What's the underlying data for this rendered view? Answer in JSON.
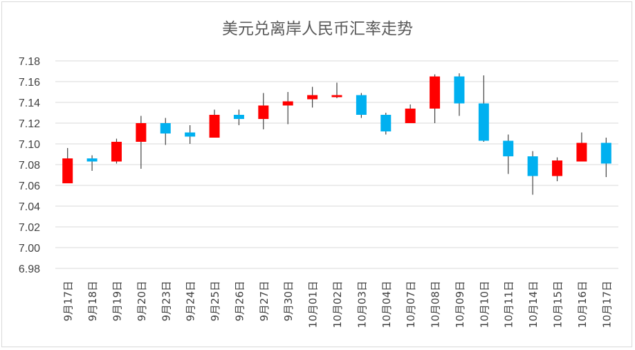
{
  "chart_data": {
    "type": "candlestick",
    "title": "美元兑离岸人民币汇率走势",
    "ylim": [
      6.98,
      7.18
    ],
    "y_ticks": [
      "6.98",
      "7.00",
      "7.02",
      "7.04",
      "7.06",
      "7.08",
      "7.10",
      "7.12",
      "7.14",
      "7.16",
      "7.18"
    ],
    "grid": true,
    "colors": {
      "up": "#ff0000",
      "down": "#00b0f0",
      "wick": "#404040",
      "grid": "#d9d9d9"
    },
    "categories": [
      "9月17日",
      "9月18日",
      "9月19日",
      "9月20日",
      "9月23日",
      "9月24日",
      "9月25日",
      "9月26日",
      "9月27日",
      "9月30日",
      "10月01日",
      "10月02日",
      "10月03日",
      "10月04日",
      "10月07日",
      "10月08日",
      "10月09日",
      "10月10日",
      "10月11日",
      "10月14日",
      "10月15日",
      "10月16日",
      "10月17日"
    ],
    "candles": [
      {
        "open": 7.062,
        "close": 7.086,
        "high": 7.096,
        "low": 7.062
      },
      {
        "open": 7.086,
        "close": 7.083,
        "high": 7.089,
        "low": 7.074
      },
      {
        "open": 7.083,
        "close": 7.102,
        "high": 7.105,
        "low": 7.081
      },
      {
        "open": 7.102,
        "close": 7.12,
        "high": 7.127,
        "low": 7.076
      },
      {
        "open": 7.12,
        "close": 7.11,
        "high": 7.125,
        "low": 7.099
      },
      {
        "open": 7.111,
        "close": 7.107,
        "high": 7.118,
        "low": 7.1
      },
      {
        "open": 7.106,
        "close": 7.128,
        "high": 7.133,
        "low": 7.106
      },
      {
        "open": 7.128,
        "close": 7.124,
        "high": 7.133,
        "low": 7.118
      },
      {
        "open": 7.124,
        "close": 7.137,
        "high": 7.149,
        "low": 7.114
      },
      {
        "open": 7.137,
        "close": 7.141,
        "high": 7.15,
        "low": 7.119
      },
      {
        "open": 7.143,
        "close": 7.147,
        "high": 7.155,
        "low": 7.135
      },
      {
        "open": 7.145,
        "close": 7.147,
        "high": 7.159,
        "low": 7.144
      },
      {
        "open": 7.147,
        "close": 7.128,
        "high": 7.149,
        "low": 7.125
      },
      {
        "open": 7.128,
        "close": 7.112,
        "high": 7.13,
        "low": 7.109
      },
      {
        "open": 7.12,
        "close": 7.134,
        "high": 7.138,
        "low": 7.12
      },
      {
        "open": 7.134,
        "close": 7.165,
        "high": 7.167,
        "low": 7.12
      },
      {
        "open": 7.165,
        "close": 7.139,
        "high": 7.168,
        "low": 7.127
      },
      {
        "open": 7.139,
        "close": 7.103,
        "high": 7.166,
        "low": 7.102
      },
      {
        "open": 7.103,
        "close": 7.088,
        "high": 7.109,
        "low": 7.071
      },
      {
        "open": 7.088,
        "close": 7.069,
        "high": 7.093,
        "low": 7.051
      },
      {
        "open": 7.069,
        "close": 7.084,
        "high": 7.087,
        "low": 7.064
      },
      {
        "open": 7.083,
        "close": 7.101,
        "high": 7.111,
        "low": 7.083
      },
      {
        "open": 7.101,
        "close": 7.081,
        "high": 7.106,
        "low": 7.068
      }
    ]
  }
}
